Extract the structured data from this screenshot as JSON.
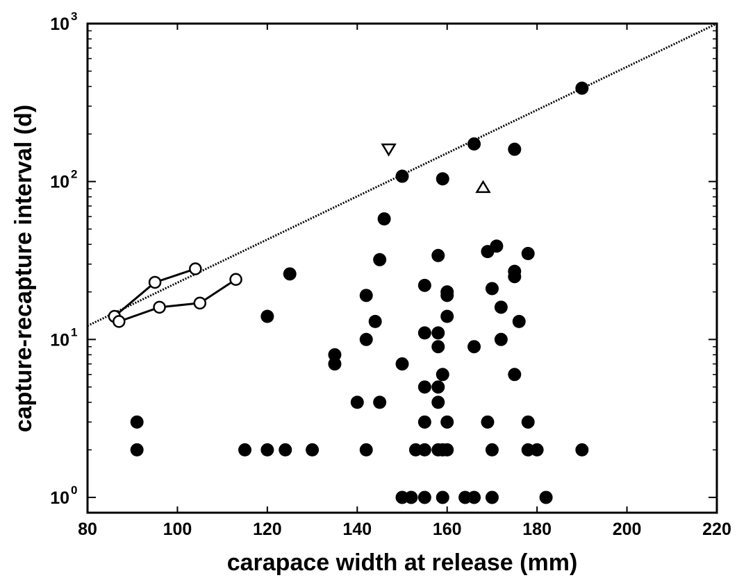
{
  "chart_data": {
    "type": "scatter",
    "xlabel": "carapace width at release (mm)",
    "ylabel": "capture-recapture interval (d)",
    "xlim": [
      80,
      220
    ],
    "ylim": [
      0.8,
      1000
    ],
    "yscale": "log",
    "x_ticks": [
      "80",
      "100",
      "120",
      "140",
      "160",
      "180",
      "200",
      "220"
    ],
    "y_ticks": [
      {
        "base": "10",
        "exp": "0",
        "value": 1
      },
      {
        "base": "10",
        "exp": "1",
        "value": 10
      },
      {
        "base": "10",
        "exp": "2",
        "value": 100
      },
      {
        "base": "10",
        "exp": "3",
        "value": 1000
      }
    ],
    "grid": false,
    "series": [
      {
        "marker": "filled-circle",
        "points": [
          [
            91,
            3
          ],
          [
            91,
            2
          ],
          [
            115,
            2
          ],
          [
            120,
            2
          ],
          [
            120,
            14
          ],
          [
            124,
            2
          ],
          [
            125,
            26
          ],
          [
            130,
            2
          ],
          [
            135,
            8
          ],
          [
            135,
            7
          ],
          [
            140,
            4
          ],
          [
            142,
            19
          ],
          [
            142,
            10
          ],
          [
            142,
            2
          ],
          [
            144,
            13
          ],
          [
            145,
            32
          ],
          [
            145,
            4
          ],
          [
            146,
            58
          ],
          [
            150,
            108
          ],
          [
            150,
            7
          ],
          [
            150,
            1
          ],
          [
            152,
            1
          ],
          [
            153,
            2
          ],
          [
            155,
            22
          ],
          [
            155,
            11
          ],
          [
            155,
            5
          ],
          [
            155,
            3
          ],
          [
            155,
            2
          ],
          [
            155,
            1
          ],
          [
            158,
            34
          ],
          [
            158,
            11
          ],
          [
            158,
            9
          ],
          [
            158,
            5
          ],
          [
            158,
            4
          ],
          [
            158,
            2
          ],
          [
            159,
            104
          ],
          [
            159,
            6
          ],
          [
            159,
            2
          ],
          [
            159,
            1
          ],
          [
            160,
            20
          ],
          [
            160,
            19
          ],
          [
            160,
            14
          ],
          [
            160,
            3
          ],
          [
            160,
            2
          ],
          [
            164,
            1
          ],
          [
            166,
            173
          ],
          [
            166,
            9
          ],
          [
            166,
            1
          ],
          [
            169,
            36
          ],
          [
            169,
            3
          ],
          [
            170,
            21
          ],
          [
            170,
            2
          ],
          [
            170,
            1
          ],
          [
            171,
            39
          ],
          [
            172,
            16
          ],
          [
            172,
            10
          ],
          [
            175,
            160
          ],
          [
            175,
            27
          ],
          [
            175,
            25
          ],
          [
            175,
            6
          ],
          [
            176,
            13
          ],
          [
            178,
            35
          ],
          [
            178,
            3
          ],
          [
            178,
            2
          ],
          [
            180,
            2
          ],
          [
            182,
            1
          ],
          [
            190,
            390
          ],
          [
            190,
            2
          ]
        ]
      },
      {
        "marker": "open-circle-line",
        "points": [
          [
            86,
            14
          ],
          [
            95,
            23
          ],
          [
            104,
            28
          ]
        ]
      },
      {
        "marker": "open-circle-line",
        "points": [
          [
            87,
            13
          ],
          [
            96,
            16
          ],
          [
            105,
            17
          ],
          [
            113,
            24
          ]
        ]
      },
      {
        "marker": "open-triangle-down",
        "points": [
          [
            147,
            160
          ]
        ]
      },
      {
        "marker": "open-triangle-up",
        "points": [
          [
            168,
            92
          ]
        ]
      }
    ],
    "fit_line": {
      "style": "dotted",
      "points": [
        [
          80,
          12.2
        ],
        [
          220,
          1000
        ]
      ]
    }
  }
}
